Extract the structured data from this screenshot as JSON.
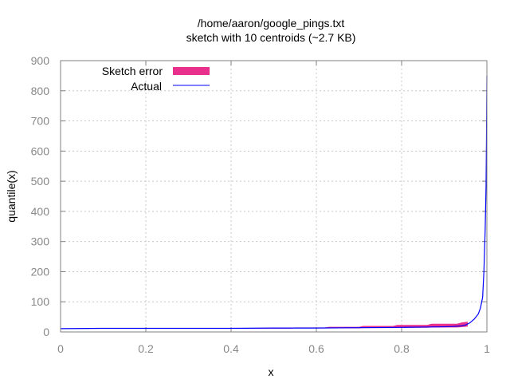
{
  "chart_data": {
    "type": "area",
    "title_line1": "/home/aaron/google_pings.txt",
    "title_line2": "sketch with 10 centroids (~2.7 KB)",
    "xlabel": "x",
    "ylabel": "quantile(x)",
    "xlim": [
      0,
      1
    ],
    "ylim": [
      0,
      900
    ],
    "grid": true,
    "legend_position": "top-left",
    "x_ticks": [
      "0",
      "0.2",
      "0.4",
      "0.6",
      "0.8",
      "1"
    ],
    "y_ticks": [
      "0",
      "100",
      "200",
      "300",
      "400",
      "500",
      "600",
      "700",
      "800",
      "900"
    ],
    "series": [
      {
        "name": "Sketch error",
        "color": "#e8308c",
        "style": "filled band",
        "x": [
          0,
          0.13,
          0.15,
          0.54,
          0.55,
          0.62,
          0.63,
          0.7,
          0.71,
          0.78,
          0.79,
          0.86,
          0.87,
          0.93,
          0.94,
          0.955
        ],
        "upper": [
          11,
          11,
          13,
          13,
          15,
          15,
          17,
          17,
          20,
          20,
          23,
          23,
          27,
          27,
          31,
          34
        ],
        "lower": [
          11,
          11,
          11,
          11,
          12,
          12,
          12,
          12,
          13,
          13,
          14,
          14,
          15,
          15,
          16,
          18
        ]
      },
      {
        "name": "Actual",
        "color": "#0000ff",
        "style": "line",
        "x": [
          0,
          0.1,
          0.2,
          0.3,
          0.4,
          0.5,
          0.6,
          0.7,
          0.8,
          0.85,
          0.9,
          0.92,
          0.94,
          0.95,
          0.96,
          0.97,
          0.98,
          0.985,
          0.99,
          0.993,
          0.996,
          0.998,
          0.999,
          1.0
        ],
        "y": [
          11,
          12,
          12,
          12,
          12,
          13,
          13,
          14,
          15,
          16,
          17,
          18,
          20,
          23,
          30,
          42,
          60,
          80,
          115,
          200,
          340,
          480,
          630,
          850
        ]
      }
    ]
  }
}
